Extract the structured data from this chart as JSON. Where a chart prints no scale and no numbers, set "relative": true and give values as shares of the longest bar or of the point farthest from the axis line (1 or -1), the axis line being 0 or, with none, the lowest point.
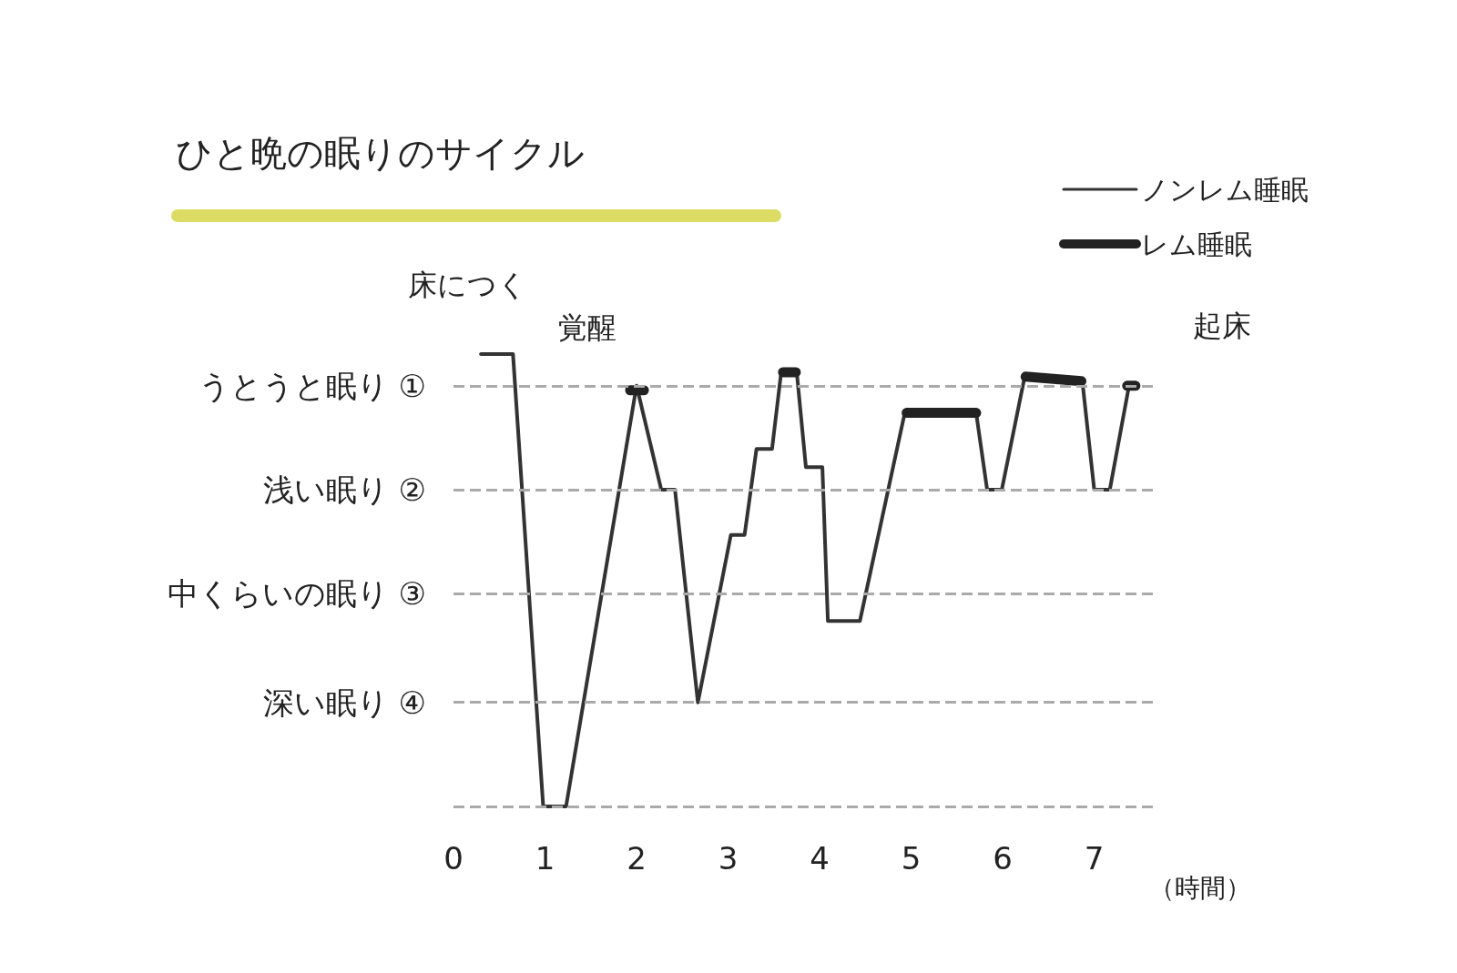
{
  "chart_data": {
    "type": "line",
    "title": "ひと晩の眠りのサイクル",
    "xlabel": "（時間）",
    "relative": true,
    "xlim": [
      0,
      7.7
    ],
    "xticks": [
      0,
      1,
      2,
      3,
      4,
      5,
      6,
      7
    ],
    "legend": "top right",
    "marker": "none",
    "ref_lines": [
      {
        "axis": "y",
        "value": 0.93,
        "label": "うとうと眠り ①",
        "color": "#aaaaaa",
        "line_style": "dashed"
      },
      {
        "axis": "y",
        "value": 0.7,
        "label": "浅い眠り ②",
        "color": "#aaaaaa",
        "line_style": "dashed"
      },
      {
        "axis": "y",
        "value": 0.47,
        "label": "中くらいの眠り ③",
        "color": "#aaaaaa",
        "line_style": "dashed"
      },
      {
        "axis": "y",
        "value": 0.23,
        "label": "深い眠り ④",
        "color": "#aaaaaa",
        "line_style": "dashed"
      },
      {
        "axis": "y",
        "value": 0,
        "label": null,
        "color": "#aaaaaa",
        "line_style": "dashed"
      }
    ],
    "series": [
      {
        "name": "ノンレム睡眠",
        "color": "#333333",
        "x": [
          0.3,
          0.65,
          0.98,
          1.23,
          2.0,
          2.27,
          2.42,
          2.67,
          3.03,
          3.18,
          3.31,
          3.48,
          3.58,
          3.75,
          3.85,
          4.03,
          4.09,
          4.44,
          4.93,
          5.71,
          5.83,
          5.99,
          6.24,
          6.87,
          7.0,
          7.17,
          7.38
        ],
        "values": [
          1,
          1,
          0,
          0,
          0.93,
          0.7,
          0.7,
          0.23,
          0.6,
          0.6,
          0.79,
          0.79,
          0.96,
          0.96,
          0.75,
          0.75,
          0.41,
          0.41,
          0.87,
          0.87,
          0.7,
          0.7,
          0.95,
          0.94,
          0.7,
          0.7,
          0.93
        ]
      },
      {
        "name": "レム睡眠",
        "color": "#222222",
        "x": [
          1.93,
          2.08,
          2.1,
          3.6,
          3.74,
          3.76,
          4.95,
          5.71,
          5.72,
          6.25,
          6.86,
          6.87,
          7.36,
          7.45
        ],
        "values": [
          0.92,
          0.92,
          null,
          0.96,
          0.96,
          null,
          0.87,
          0.87,
          null,
          0.95,
          0.94,
          null,
          0.93,
          0.93
        ]
      }
    ],
    "annotations": [
      {
        "text": "床につく",
        "x": 0.3,
        "y": 1
      },
      "覚醒",
      {
        "text": "起床",
        "x": 7.38,
        "y": 0.93
      }
    ]
  }
}
